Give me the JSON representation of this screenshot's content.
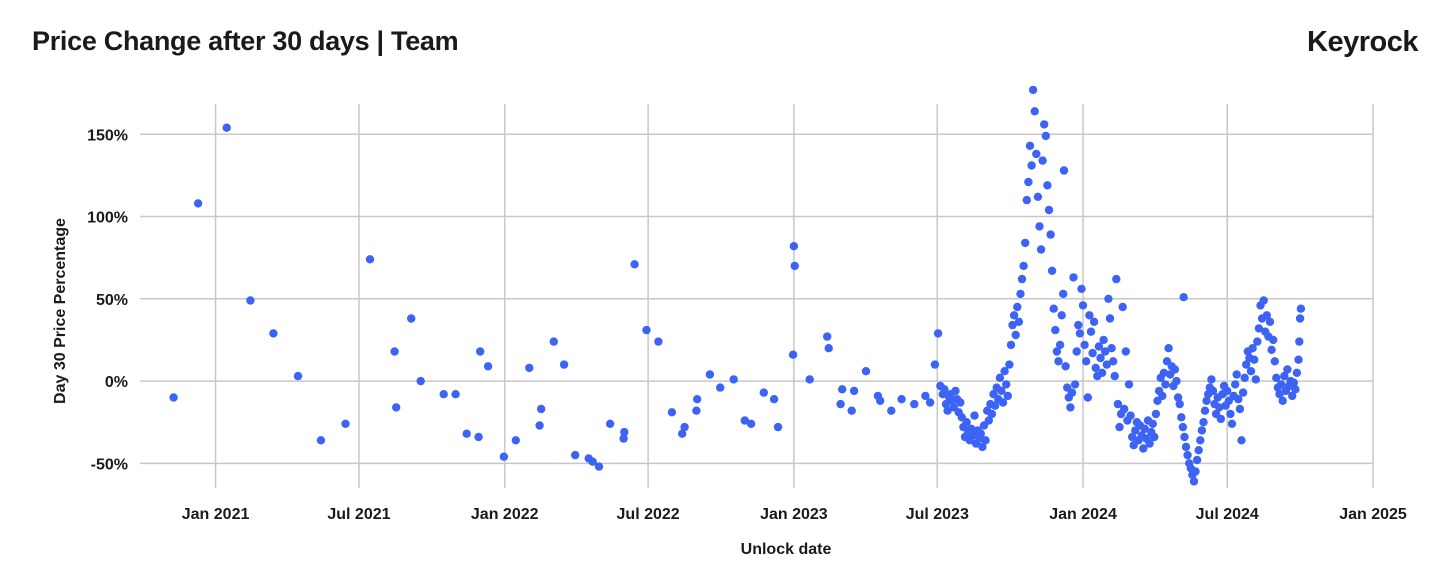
{
  "header": {
    "title": "Price Change after 30 days | Team",
    "brand": "Keyrock"
  },
  "chart_data": {
    "type": "scatter",
    "title": "Price Change after 30 days | Team",
    "xlabel": "Unlock date",
    "ylabel": "Day 30 Price Percentage",
    "x_ticks": [
      "2021-01-01",
      "2021-07-01",
      "2022-01-01",
      "2022-07-01",
      "2023-01-01",
      "2023-07-01",
      "2024-01-01",
      "2024-07-01",
      "2025-01-01"
    ],
    "x_tick_labels": [
      "Jan 2021",
      "Jul 2021",
      "Jan 2022",
      "Jul 2022",
      "Jan 2023",
      "Jul 2023",
      "Jan 2024",
      "Jul 2024",
      "Jan 2025"
    ],
    "y_ticks": [
      -50,
      0,
      50,
      100,
      150
    ],
    "y_tick_labels": [
      "-50%",
      "0%",
      "50%",
      "100%",
      "150%"
    ],
    "xlim": [
      "2020-09-15",
      "2025-01-01"
    ],
    "ylim": [
      -65,
      183
    ],
    "grid": true,
    "color": "#3d63f5",
    "points": [
      [
        "2020-11-09",
        -10
      ],
      [
        "2020-12-10",
        108
      ],
      [
        "2021-01-15",
        154
      ],
      [
        "2021-02-14",
        49
      ],
      [
        "2021-03-15",
        29
      ],
      [
        "2021-04-15",
        3
      ],
      [
        "2021-05-14",
        -36
      ],
      [
        "2021-06-14",
        -26
      ],
      [
        "2021-07-15",
        74
      ],
      [
        "2021-08-15",
        18
      ],
      [
        "2021-08-17",
        -16
      ],
      [
        "2021-09-05",
        38
      ],
      [
        "2021-09-17",
        0
      ],
      [
        "2021-10-16",
        -8
      ],
      [
        "2021-10-31",
        -8
      ],
      [
        "2021-11-14",
        -32
      ],
      [
        "2021-11-29",
        -34
      ],
      [
        "2021-12-01",
        18
      ],
      [
        "2021-12-11",
        9
      ],
      [
        "2021-12-31",
        -46
      ],
      [
        "2022-01-15",
        -36
      ],
      [
        "2022-02-01",
        8
      ],
      [
        "2022-02-14",
        -27
      ],
      [
        "2022-02-16",
        -17
      ],
      [
        "2022-03-04",
        24
      ],
      [
        "2022-03-17",
        10
      ],
      [
        "2022-03-31",
        -45
      ],
      [
        "2022-04-17",
        -47
      ],
      [
        "2022-04-22",
        -49
      ],
      [
        "2022-04-30",
        -52
      ],
      [
        "2022-05-14",
        -26
      ],
      [
        "2022-05-31",
        -35
      ],
      [
        "2022-06-01",
        -31
      ],
      [
        "2022-06-14",
        71
      ],
      [
        "2022-06-29",
        31
      ],
      [
        "2022-07-14",
        24
      ],
      [
        "2022-07-31",
        -19
      ],
      [
        "2022-08-13",
        -32
      ],
      [
        "2022-08-16",
        -28
      ],
      [
        "2022-08-31",
        -18
      ],
      [
        "2022-09-01",
        -11
      ],
      [
        "2022-09-17",
        4
      ],
      [
        "2022-09-30",
        -4
      ],
      [
        "2022-10-17",
        1
      ],
      [
        "2022-10-31",
        -24
      ],
      [
        "2022-11-08",
        -26
      ],
      [
        "2022-11-24",
        -7
      ],
      [
        "2022-12-07",
        -11
      ],
      [
        "2022-12-12",
        -28
      ],
      [
        "2022-12-31",
        16
      ],
      [
        "2023-01-01",
        82
      ],
      [
        "2023-01-02",
        70
      ],
      [
        "2023-01-21",
        1
      ],
      [
        "2023-02-12",
        27
      ],
      [
        "2023-02-14",
        20
      ],
      [
        "2023-03-01",
        -14
      ],
      [
        "2023-03-03",
        -5
      ],
      [
        "2023-03-15",
        -18
      ],
      [
        "2023-03-18",
        -6
      ],
      [
        "2023-04-02",
        6
      ],
      [
        "2023-04-17",
        -9
      ],
      [
        "2023-04-20",
        -12
      ],
      [
        "2023-05-04",
        -18
      ],
      [
        "2023-05-17",
        -11
      ],
      [
        "2023-06-02",
        -14
      ],
      [
        "2023-06-16",
        -9
      ],
      [
        "2023-06-22",
        -13
      ],
      [
        "2023-06-28",
        10
      ],
      [
        "2023-07-02",
        29
      ],
      [
        "2023-07-05",
        -3
      ],
      [
        "2023-07-08",
        -8
      ],
      [
        "2023-07-10",
        -5
      ],
      [
        "2023-07-12",
        -14
      ],
      [
        "2023-07-14",
        -18
      ],
      [
        "2023-07-16",
        -10
      ],
      [
        "2023-07-18",
        -8
      ],
      [
        "2023-07-20",
        -12
      ],
      [
        "2023-07-22",
        -16
      ],
      [
        "2023-07-24",
        -6
      ],
      [
        "2023-07-26",
        -11
      ],
      [
        "2023-07-28",
        -19
      ],
      [
        "2023-07-30",
        -13
      ],
      [
        "2023-08-01",
        -22
      ],
      [
        "2023-08-03",
        -28
      ],
      [
        "2023-08-05",
        -34
      ],
      [
        "2023-08-07",
        -25
      ],
      [
        "2023-08-09",
        -31
      ],
      [
        "2023-08-11",
        -36
      ],
      [
        "2023-08-13",
        -29
      ],
      [
        "2023-08-15",
        -33
      ],
      [
        "2023-08-17",
        -21
      ],
      [
        "2023-08-19",
        -38
      ],
      [
        "2023-08-21",
        -30
      ],
      [
        "2023-08-23",
        -35
      ],
      [
        "2023-08-25",
        -32
      ],
      [
        "2023-08-27",
        -40
      ],
      [
        "2023-08-29",
        -27
      ],
      [
        "2023-08-31",
        -36
      ],
      [
        "2023-09-02",
        -18
      ],
      [
        "2023-09-04",
        -24
      ],
      [
        "2023-09-06",
        -14
      ],
      [
        "2023-09-08",
        -20
      ],
      [
        "2023-09-10",
        -8
      ],
      [
        "2023-09-12",
        -15
      ],
      [
        "2023-09-14",
        -4
      ],
      [
        "2023-09-16",
        -11
      ],
      [
        "2023-09-18",
        2
      ],
      [
        "2023-09-20",
        -6
      ],
      [
        "2023-09-22",
        -13
      ],
      [
        "2023-09-24",
        6
      ],
      [
        "2023-09-26",
        -2
      ],
      [
        "2023-09-28",
        -9
      ],
      [
        "2023-09-30",
        10
      ],
      [
        "2023-10-02",
        22
      ],
      [
        "2023-10-04",
        34
      ],
      [
        "2023-10-06",
        40
      ],
      [
        "2023-10-08",
        28
      ],
      [
        "2023-10-10",
        45
      ],
      [
        "2023-10-12",
        36
      ],
      [
        "2023-10-14",
        53
      ],
      [
        "2023-10-16",
        62
      ],
      [
        "2023-10-18",
        70
      ],
      [
        "2023-10-20",
        84
      ],
      [
        "2023-10-22",
        110
      ],
      [
        "2023-10-24",
        121
      ],
      [
        "2023-10-26",
        143
      ],
      [
        "2023-10-28",
        131
      ],
      [
        "2023-10-30",
        177
      ],
      [
        "2023-11-01",
        164
      ],
      [
        "2023-11-03",
        138
      ],
      [
        "2023-11-05",
        112
      ],
      [
        "2023-11-07",
        94
      ],
      [
        "2023-11-09",
        80
      ],
      [
        "2023-11-11",
        134
      ],
      [
        "2023-11-13",
        156
      ],
      [
        "2023-11-15",
        149
      ],
      [
        "2023-11-17",
        119
      ],
      [
        "2023-11-19",
        104
      ],
      [
        "2023-11-21",
        89
      ],
      [
        "2023-11-23",
        67
      ],
      [
        "2023-11-25",
        44
      ],
      [
        "2023-11-27",
        31
      ],
      [
        "2023-11-29",
        18
      ],
      [
        "2023-12-01",
        12
      ],
      [
        "2023-12-03",
        22
      ],
      [
        "2023-12-05",
        40
      ],
      [
        "2023-12-07",
        53
      ],
      [
        "2023-12-08",
        128
      ],
      [
        "2023-12-10",
        9
      ],
      [
        "2023-12-12",
        -4
      ],
      [
        "2023-12-14",
        -10
      ],
      [
        "2023-12-16",
        -16
      ],
      [
        "2023-12-18",
        -7
      ],
      [
        "2023-12-20",
        63
      ],
      [
        "2023-12-22",
        -2
      ],
      [
        "2023-12-24",
        18
      ],
      [
        "2023-12-26",
        34
      ],
      [
        "2023-12-28",
        29
      ],
      [
        "2023-12-30",
        56
      ],
      [
        "2024-01-01",
        46
      ],
      [
        "2024-01-03",
        22
      ],
      [
        "2024-01-05",
        12
      ],
      [
        "2024-01-07",
        -10
      ],
      [
        "2024-01-09",
        40
      ],
      [
        "2024-01-11",
        30
      ],
      [
        "2024-01-13",
        17
      ],
      [
        "2024-01-15",
        36
      ],
      [
        "2024-01-17",
        8
      ],
      [
        "2024-01-19",
        3
      ],
      [
        "2024-01-21",
        21
      ],
      [
        "2024-01-23",
        14
      ],
      [
        "2024-01-25",
        5
      ],
      [
        "2024-01-27",
        25
      ],
      [
        "2024-01-29",
        18
      ],
      [
        "2024-01-31",
        10
      ],
      [
        "2024-02-02",
        50
      ],
      [
        "2024-02-04",
        38
      ],
      [
        "2024-02-06",
        20
      ],
      [
        "2024-02-08",
        12
      ],
      [
        "2024-02-10",
        3
      ],
      [
        "2024-02-12",
        62
      ],
      [
        "2024-02-14",
        -14
      ],
      [
        "2024-02-16",
        -28
      ],
      [
        "2024-02-18",
        -20
      ],
      [
        "2024-02-20",
        45
      ],
      [
        "2024-02-22",
        -17
      ],
      [
        "2024-02-24",
        18
      ],
      [
        "2024-02-26",
        -24
      ],
      [
        "2024-02-28",
        -2
      ],
      [
        "2024-03-01",
        -21
      ],
      [
        "2024-03-03",
        -34
      ],
      [
        "2024-03-05",
        -39
      ],
      [
        "2024-03-07",
        -30
      ],
      [
        "2024-03-09",
        -25
      ],
      [
        "2024-03-11",
        -36
      ],
      [
        "2024-03-13",
        -27
      ],
      [
        "2024-03-15",
        -33
      ],
      [
        "2024-03-17",
        -41
      ],
      [
        "2024-03-19",
        -29
      ],
      [
        "2024-03-21",
        -35
      ],
      [
        "2024-03-23",
        -24
      ],
      [
        "2024-03-25",
        -38
      ],
      [
        "2024-03-27",
        -31
      ],
      [
        "2024-03-29",
        -26
      ],
      [
        "2024-03-31",
        -34
      ],
      [
        "2024-04-02",
        -20
      ],
      [
        "2024-04-04",
        -12
      ],
      [
        "2024-04-06",
        -6
      ],
      [
        "2024-04-08",
        2
      ],
      [
        "2024-04-10",
        -9
      ],
      [
        "2024-04-12",
        5
      ],
      [
        "2024-04-14",
        -2
      ],
      [
        "2024-04-16",
        12
      ],
      [
        "2024-04-18",
        20
      ],
      [
        "2024-04-20",
        4
      ],
      [
        "2024-04-22",
        9
      ],
      [
        "2024-04-24",
        -3
      ],
      [
        "2024-04-26",
        7
      ],
      [
        "2024-04-28",
        0
      ],
      [
        "2024-04-30",
        -10
      ],
      [
        "2024-05-02",
        -14
      ],
      [
        "2024-05-04",
        -22
      ],
      [
        "2024-05-06",
        -28
      ],
      [
        "2024-05-07",
        51
      ],
      [
        "2024-05-08",
        -34
      ],
      [
        "2024-05-10",
        -40
      ],
      [
        "2024-05-12",
        -45
      ],
      [
        "2024-05-14",
        -50
      ],
      [
        "2024-05-16",
        -53
      ],
      [
        "2024-05-18",
        -57
      ],
      [
        "2024-05-20",
        -61
      ],
      [
        "2024-05-22",
        -55
      ],
      [
        "2024-05-24",
        -48
      ],
      [
        "2024-05-26",
        -42
      ],
      [
        "2024-05-28",
        -36
      ],
      [
        "2024-05-30",
        -30
      ],
      [
        "2024-06-01",
        -25
      ],
      [
        "2024-06-03",
        -18
      ],
      [
        "2024-06-05",
        -12
      ],
      [
        "2024-06-07",
        -8
      ],
      [
        "2024-06-09",
        -4
      ],
      [
        "2024-06-11",
        1
      ],
      [
        "2024-06-13",
        -6
      ],
      [
        "2024-06-15",
        -14
      ],
      [
        "2024-06-17",
        -20
      ],
      [
        "2024-06-19",
        -10
      ],
      [
        "2024-06-21",
        -16
      ],
      [
        "2024-06-23",
        -23
      ],
      [
        "2024-06-25",
        -8
      ],
      [
        "2024-06-27",
        -3
      ],
      [
        "2024-06-29",
        -15
      ],
      [
        "2024-07-01",
        -6
      ],
      [
        "2024-07-03",
        -12
      ],
      [
        "2024-07-05",
        -20
      ],
      [
        "2024-07-07",
        -26
      ],
      [
        "2024-07-09",
        -9
      ],
      [
        "2024-07-11",
        -2
      ],
      [
        "2024-07-13",
        4
      ],
      [
        "2024-07-15",
        -11
      ],
      [
        "2024-07-17",
        -17
      ],
      [
        "2024-07-19",
        -36
      ],
      [
        "2024-07-21",
        -7
      ],
      [
        "2024-07-23",
        2
      ],
      [
        "2024-07-25",
        10
      ],
      [
        "2024-07-27",
        18
      ],
      [
        "2024-07-29",
        14
      ],
      [
        "2024-07-31",
        6
      ],
      [
        "2024-08-02",
        20
      ],
      [
        "2024-08-04",
        13
      ],
      [
        "2024-08-06",
        1
      ],
      [
        "2024-08-08",
        24
      ],
      [
        "2024-08-10",
        32
      ],
      [
        "2024-08-12",
        46
      ],
      [
        "2024-08-14",
        38
      ],
      [
        "2024-08-16",
        49
      ],
      [
        "2024-08-18",
        30
      ],
      [
        "2024-08-20",
        40
      ],
      [
        "2024-08-22",
        27
      ],
      [
        "2024-08-24",
        36
      ],
      [
        "2024-08-26",
        19
      ],
      [
        "2024-08-28",
        25
      ],
      [
        "2024-08-30",
        12
      ],
      [
        "2024-09-01",
        2
      ],
      [
        "2024-09-03",
        -4
      ],
      [
        "2024-09-05",
        -8
      ],
      [
        "2024-09-07",
        -2
      ],
      [
        "2024-09-09",
        -12
      ],
      [
        "2024-09-11",
        3
      ],
      [
        "2024-09-13",
        -6
      ],
      [
        "2024-09-15",
        7
      ],
      [
        "2024-09-17",
        -3
      ],
      [
        "2024-09-19",
        0
      ],
      [
        "2024-09-21",
        -9
      ],
      [
        "2024-09-23",
        -1
      ],
      [
        "2024-09-25",
        -5
      ],
      [
        "2024-09-27",
        5
      ],
      [
        "2024-09-29",
        13
      ],
      [
        "2024-09-30",
        24
      ],
      [
        "2024-10-01",
        38
      ],
      [
        "2024-10-02",
        44
      ]
    ]
  }
}
